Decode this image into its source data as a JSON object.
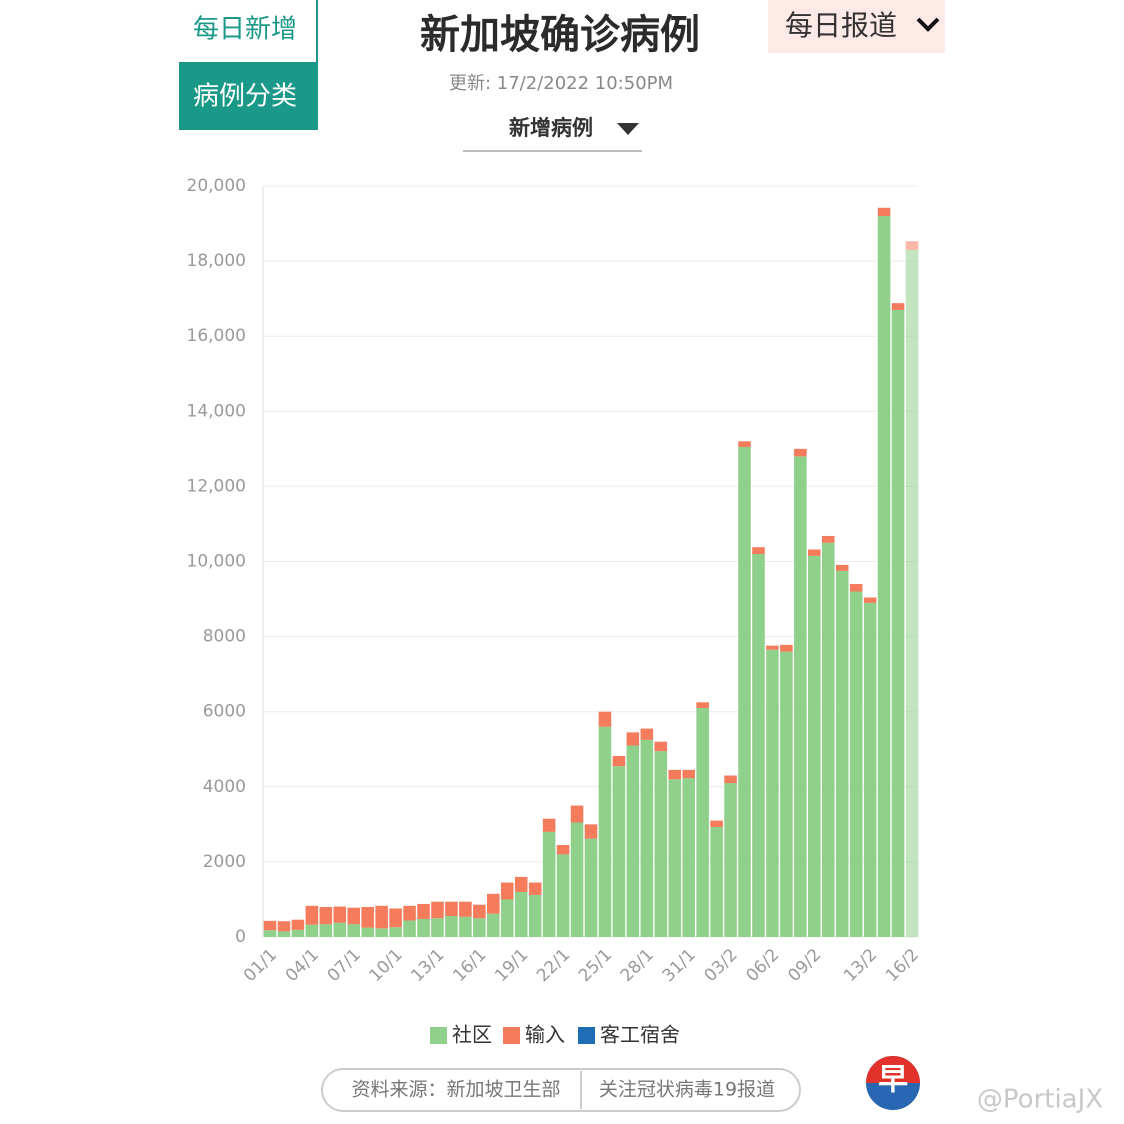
{
  "ui": {
    "tab_daily": "每日新增",
    "tab_category": "病例分类",
    "updated": "更新: 17/2/2022 10:50PM",
    "dropdown": "新增病例",
    "report_menu": "每日报道",
    "source": "资料来源：新加坡卫生部",
    "follow": "关注冠状病毒19报道",
    "logo": "早",
    "watermark": "@PortiaJX"
  },
  "chart_data": {
    "type": "stacked_bar",
    "title": "新加坡确诊病例",
    "categories": [
      "01/1",
      null,
      null,
      "04/1",
      null,
      null,
      "07/1",
      null,
      null,
      "10/1",
      null,
      null,
      "13/1",
      null,
      null,
      "16/1",
      null,
      null,
      "19/1",
      null,
      null,
      "22/1",
      null,
      null,
      "25/1",
      null,
      null,
      "28/1",
      null,
      null,
      "31/1",
      null,
      null,
      "03/2",
      null,
      null,
      "06/2",
      null,
      null,
      "09/2",
      null,
      null,
      null,
      "13/2",
      null,
      null,
      "16/2"
    ],
    "series": [
      {
        "name": "社区",
        "color": "#8fd08a",
        "values": [
          180,
          150,
          190,
          330,
          340,
          380,
          340,
          250,
          230,
          260,
          440,
          480,
          500,
          560,
          540,
          500,
          620,
          1000,
          1200,
          1120,
          2800,
          2200,
          3050,
          2620,
          5600,
          4550,
          5100,
          5250,
          4950,
          4200,
          4230,
          6100,
          2930,
          4100,
          13050,
          10200,
          7650,
          7600,
          12800,
          10150,
          10500,
          9750,
          9200,
          8900,
          19200,
          16700,
          18300
        ]
      },
      {
        "name": "输入",
        "color": "#f47b5b",
        "values": [
          250,
          270,
          270,
          500,
          460,
          430,
          440,
          550,
          600,
          500,
          390,
          400,
          440,
          380,
          400,
          360,
          530,
          450,
          400,
          330,
          350,
          250,
          450,
          380,
          400,
          270,
          350,
          300,
          250,
          250,
          220,
          150,
          170,
          200,
          150,
          180,
          110,
          180,
          200,
          170,
          180,
          160,
          200,
          140,
          220,
          180,
          230
        ]
      },
      {
        "name": "客工宿舍",
        "color": "#1f6db5",
        "values": [
          0,
          0,
          0,
          0,
          0,
          0,
          0,
          0,
          0,
          0,
          0,
          0,
          0,
          0,
          0,
          0,
          0,
          0,
          0,
          0,
          0,
          0,
          0,
          0,
          0,
          0,
          0,
          0,
          0,
          0,
          0,
          0,
          0,
          0,
          0,
          0,
          0,
          0,
          0,
          0,
          0,
          0,
          0,
          0,
          0,
          0,
          0
        ]
      }
    ],
    "ylim": [
      0,
      20000
    ],
    "yticks": [
      0,
      2000,
      4000,
      6000,
      8000,
      {
        "value": 10000,
        "label": "10,000"
      },
      {
        "value": 12000,
        "label": "12,000"
      },
      {
        "value": 14000,
        "label": "14,000"
      },
      {
        "value": 16000,
        "label": "16,000"
      },
      {
        "value": 18000,
        "label": "18,000"
      },
      {
        "value": 20000,
        "label": "20,000"
      }
    ],
    "grid": true
  }
}
